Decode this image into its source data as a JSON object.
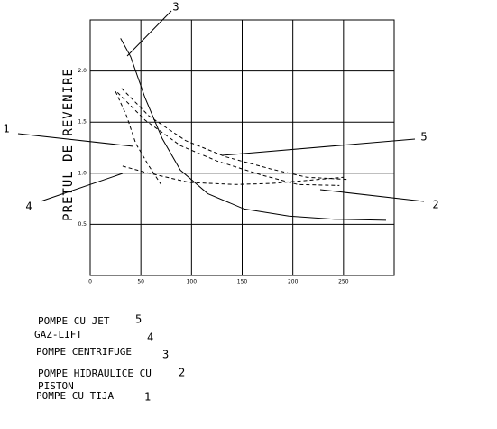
{
  "chart_data": {
    "type": "line",
    "ylabel": "PRETUL DE REVENIRE",
    "xlim": [
      0,
      300
    ],
    "ylim": [
      0,
      2.5
    ],
    "xticks": [
      0,
      50,
      100,
      150,
      200,
      250
    ],
    "yticks": [
      0.5,
      {
        "value": 1,
        "label": "1.0"
      },
      1.5,
      {
        "value": 2,
        "label": "2.0"
      }
    ],
    "grid": true,
    "series": [
      {
        "name": "1",
        "description": [
          "POMPE CU TIJA"
        ],
        "color": "#000000",
        "dashed": true,
        "x": [
          25,
          36,
          45,
          58,
          70
        ],
        "values": [
          1.8,
          1.56,
          1.29,
          1.07,
          0.89
        ]
      },
      {
        "name": "2",
        "description": [
          "POMPE HIDRAULICE CU",
          "PISTON"
        ],
        "color": "#000000",
        "dashed": true,
        "x": [
          31,
          58,
          94,
          134,
          179,
          214,
          253
        ],
        "values": [
          1.83,
          1.56,
          1.32,
          1.16,
          1.04,
          0.96,
          0.94
        ]
      },
      {
        "name": "3",
        "description": [
          "POMPE CENTRIFUGE"
        ],
        "color": "#000000",
        "dashed": false,
        "x": [
          30,
          40,
          54,
          71,
          89,
          116,
          152,
          196,
          241,
          292
        ],
        "values": [
          2.32,
          2.14,
          1.74,
          1.34,
          1.03,
          0.8,
          0.65,
          0.58,
          0.55,
          0.54
        ]
      },
      {
        "name": "4",
        "description": [
          "GAZ-LIFT"
        ],
        "color": "#000000",
        "dashed": true,
        "x": [
          32,
          54,
          98,
          143,
          179,
          250
        ],
        "values": [
          1.07,
          1.01,
          0.91,
          0.89,
          0.9,
          0.96
        ]
      },
      {
        "name": "5",
        "description": [
          "POMPE CU JET"
        ],
        "color": "#000000",
        "dashed": true,
        "x": [
          27,
          54,
          89,
          125,
          170,
          205,
          246
        ],
        "values": [
          1.79,
          1.52,
          1.27,
          1.12,
          0.98,
          0.89,
          0.88
        ]
      }
    ]
  }
}
